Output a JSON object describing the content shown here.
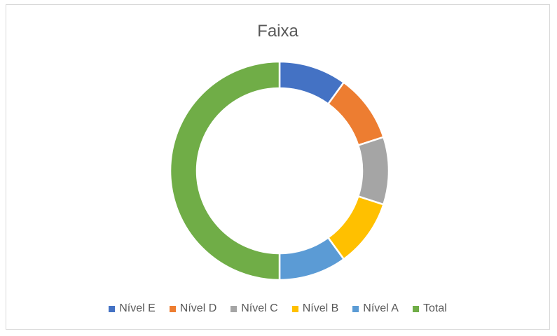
{
  "chart_data": {
    "type": "pie",
    "donut": true,
    "title": "Faixa",
    "categories": [
      "Nível E",
      "Nível D",
      "Nível C",
      "Nível B",
      "Nível A",
      "Total"
    ],
    "values": [
      1,
      1,
      1,
      1,
      1,
      5
    ],
    "colors": [
      "#4472C4",
      "#ED7D31",
      "#A5A5A5",
      "#FFC000",
      "#5B9BD5",
      "#70AD47"
    ],
    "legend_position": "bottom"
  }
}
